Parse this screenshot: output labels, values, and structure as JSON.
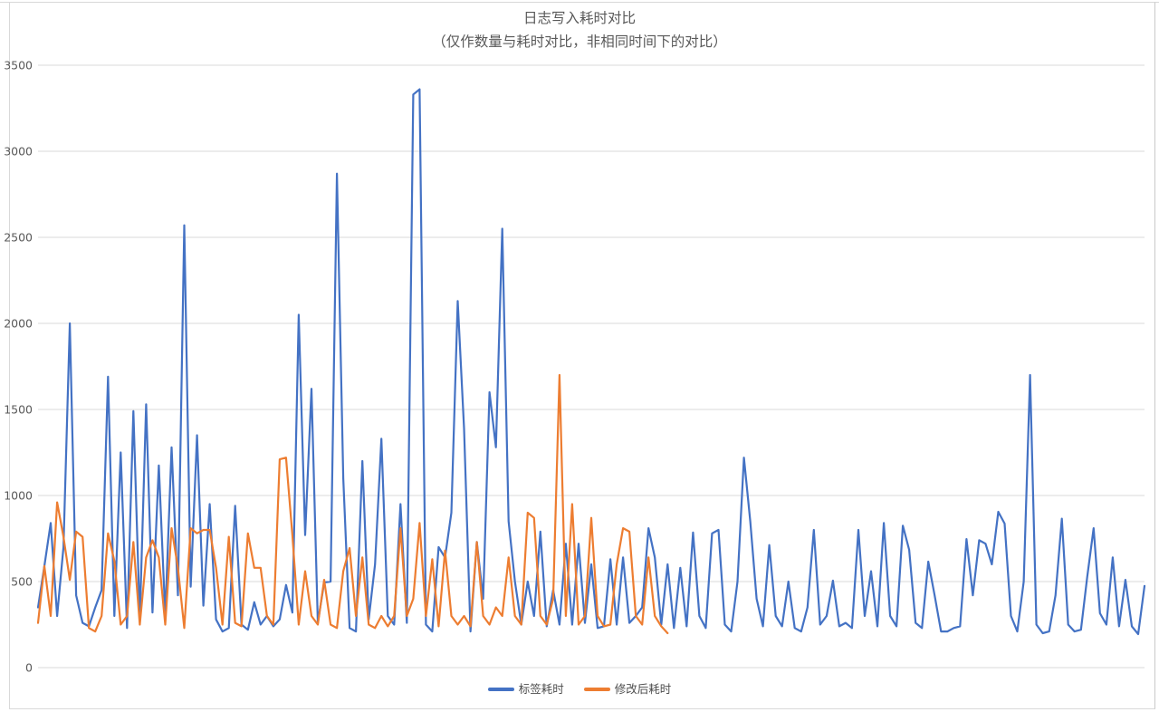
{
  "chart_data": {
    "type": "line",
    "title": "日志写入耗时对比",
    "subtitle": "（仅作数量与耗时对比，非相同时间下的对比）",
    "xlabel": "",
    "ylabel": "",
    "ylim": [
      0,
      3500
    ],
    "yticks": [
      0,
      500,
      1000,
      1500,
      2000,
      2500,
      3000,
      3500
    ],
    "grid": true,
    "x_axis_labels_visible": false,
    "legend_position": "bottom",
    "colors": {
      "gridline": "#d9d9d9",
      "tick_label": "#595959",
      "title": "#595959"
    },
    "series": [
      {
        "name": "标签耗时",
        "color": "#4472C4",
        "values": [
          350,
          590,
          840,
          300,
          700,
          2000,
          420,
          260,
          240,
          350,
          450,
          1690,
          300,
          1250,
          230,
          1490,
          280,
          1530,
          320,
          1175,
          300,
          1280,
          420,
          2570,
          470,
          1350,
          360,
          950,
          280,
          210,
          230,
          940,
          250,
          220,
          380,
          250,
          300,
          240,
          280,
          480,
          320,
          2050,
          770,
          1620,
          260,
          495,
          500,
          2870,
          1100,
          230,
          210,
          1200,
          280,
          600,
          1330,
          300,
          250,
          950,
          260,
          3330,
          3360,
          250,
          210,
          700,
          640,
          900,
          2130,
          1390,
          210,
          730,
          400,
          1600,
          1280,
          2550,
          850,
          500,
          250,
          500,
          300,
          790,
          240,
          450,
          250,
          720,
          250,
          720,
          260,
          600,
          230,
          240,
          630,
          250,
          640,
          260,
          300,
          350,
          810,
          640,
          250,
          600,
          230,
          580,
          240,
          785,
          300,
          230,
          780,
          800,
          250,
          210,
          500,
          1220,
          850,
          400,
          240,
          712,
          300,
          240,
          500,
          230,
          210,
          350,
          800,
          250,
          300,
          505,
          240,
          260,
          230,
          800,
          300,
          560,
          240,
          840,
          300,
          240,
          825,
          684,
          260,
          230,
          616,
          420,
          210,
          210,
          230,
          240,
          747,
          420,
          740,
          720,
          600,
          905,
          837,
          300,
          210,
          500,
          1700,
          250,
          200,
          210,
          420,
          865,
          250,
          210,
          220,
          530,
          810,
          316,
          250,
          640,
          240,
          510,
          240,
          195,
          474
        ]
      },
      {
        "name": "修改后耗时",
        "color": "#ED7D31",
        "values": [
          260,
          590,
          300,
          960,
          760,
          510,
          790,
          760,
          230,
          210,
          300,
          780,
          620,
          250,
          300,
          730,
          250,
          640,
          740,
          640,
          250,
          810,
          580,
          230,
          810,
          780,
          800,
          800,
          580,
          250,
          760,
          260,
          240,
          780,
          580,
          580,
          300,
          250,
          1210,
          1220,
          770,
          250,
          560,
          300,
          250,
          510,
          250,
          230,
          560,
          695,
          300,
          640,
          250,
          230,
          300,
          240,
          300,
          810,
          300,
          400,
          840,
          300,
          630,
          240,
          680,
          300,
          250,
          300,
          240,
          730,
          300,
          250,
          350,
          300,
          640,
          300,
          250,
          900,
          870,
          300,
          250,
          400,
          1700,
          300,
          950,
          250,
          300,
          870,
          300,
          240,
          250,
          600,
          810,
          790,
          300,
          250,
          640,
          300,
          240,
          200
        ]
      }
    ]
  }
}
